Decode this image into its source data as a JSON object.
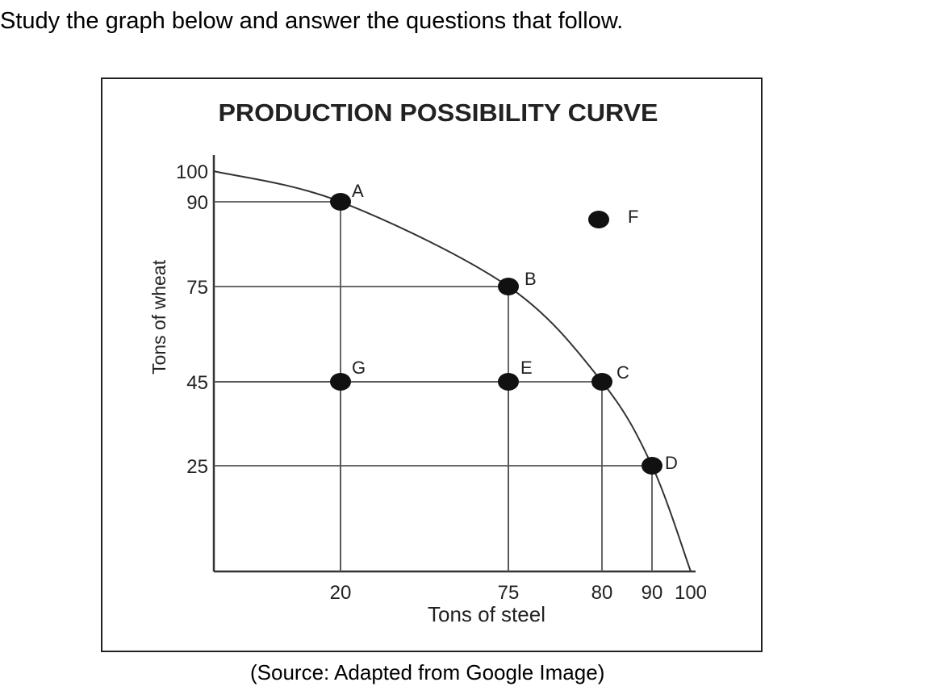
{
  "instruction": "Study the graph below and answer the questions that follow.",
  "source": "(Source: Adapted from Google Image)",
  "chart_data": {
    "type": "line",
    "title": "PRODUCTION POSSIBILITY CURVE",
    "xlabel": "Tons of steel",
    "ylabel": "Tons of wheat",
    "xlim": [
      0,
      100
    ],
    "ylim": [
      0,
      100
    ],
    "x_ticks": [
      20,
      75,
      80,
      90,
      100
    ],
    "y_ticks": [
      25,
      45,
      75,
      90,
      100
    ],
    "grid": false,
    "curve": {
      "x": [
        0,
        20,
        75,
        80,
        90,
        100
      ],
      "y": [
        100,
        90,
        75,
        45,
        25,
        0
      ]
    },
    "points": [
      {
        "label": "A",
        "x": 20,
        "y": 90
      },
      {
        "label": "B",
        "x": 75,
        "y": 75
      },
      {
        "label": "C",
        "x": 80,
        "y": 45
      },
      {
        "label": "D",
        "x": 90,
        "y": 25
      },
      {
        "label": "E",
        "x": 75,
        "y": 45
      },
      {
        "label": "F",
        "x": 80,
        "y": 85
      },
      {
        "label": "G",
        "x": 20,
        "y": 45
      }
    ]
  }
}
